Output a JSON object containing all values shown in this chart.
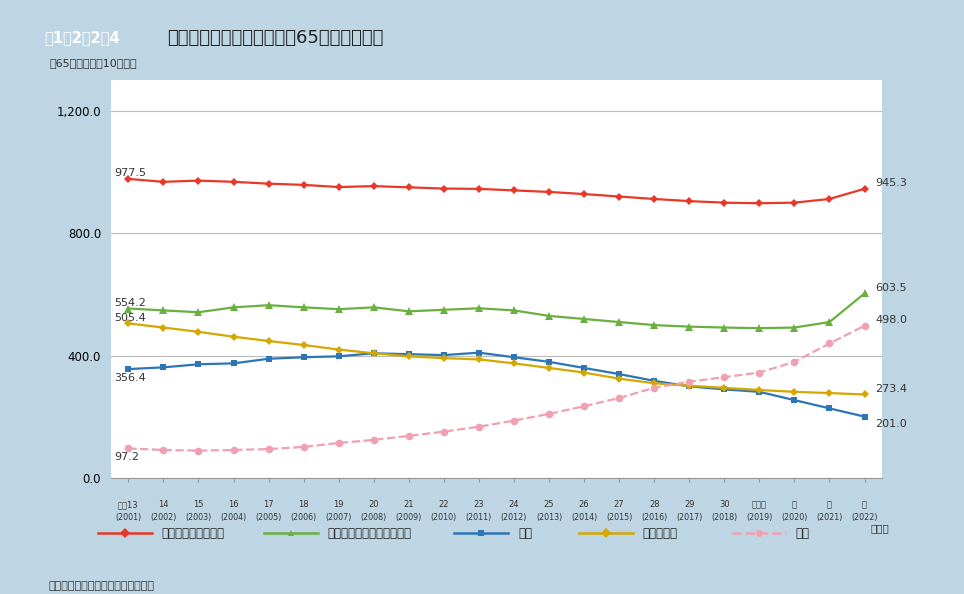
{
  "ylabel": "（65歳以上人口10万対）",
  "source": "資料：厘生労働省「人口動態統計」",
  "box_label": "図1－2－2－4",
  "main_title": "主な死因別死亡率の推移（65歳以上の者）",
  "xlabels_top": [
    "平成13",
    "14",
    "15",
    "16",
    "17",
    "18",
    "19",
    "20",
    "21",
    "22",
    "23",
    "24",
    "25",
    "26",
    "27",
    "28",
    "29",
    "30",
    "令和元",
    "２",
    "３",
    "４"
  ],
  "xlabels_bottom": [
    "(2001)",
    "(2002)",
    "(2003)",
    "(2004)",
    "(2005)",
    "(2006)",
    "(2007)",
    "(2008)",
    "(2009)",
    "(2010)",
    "(2011)",
    "(2012)",
    "(2013)",
    "(2014)",
    "(2015)",
    "(2016)",
    "(2017)",
    "(2018)",
    "(2019)",
    "(2020)",
    "(2021)",
    "(2022)"
  ],
  "cancer": [
    977.5,
    968.0,
    972.0,
    968.0,
    962.0,
    958.0,
    951.0,
    954.0,
    950.0,
    946.0,
    945.0,
    940.0,
    935.0,
    928.0,
    920.0,
    912.0,
    905.0,
    900.0,
    898.0,
    900.0,
    912.0,
    945.3
  ],
  "heart": [
    554.2,
    548.0,
    542.0,
    558.0,
    565.0,
    558.0,
    552.0,
    558.0,
    545.0,
    550.0,
    555.0,
    548.0,
    530.0,
    520.0,
    510.0,
    500.0,
    495.0,
    492.0,
    490.0,
    492.0,
    510.0,
    603.5
  ],
  "pneumonia": [
    356.4,
    362.0,
    372.0,
    375.0,
    390.0,
    395.0,
    398.0,
    408.0,
    405.0,
    402.0,
    410.0,
    395.0,
    380.0,
    360.0,
    340.0,
    318.0,
    300.0,
    290.0,
    282.0,
    255.0,
    228.0,
    201.0
  ],
  "cerebrovascular": [
    505.4,
    492.0,
    478.0,
    462.0,
    448.0,
    435.0,
    420.0,
    408.0,
    398.0,
    392.0,
    388.0,
    375.0,
    360.0,
    345.0,
    325.0,
    310.0,
    302.0,
    295.0,
    288.0,
    282.0,
    278.0,
    273.4
  ],
  "senility": [
    97.2,
    92.0,
    90.0,
    92.0,
    95.0,
    102.0,
    115.0,
    125.0,
    138.0,
    152.0,
    168.0,
    188.0,
    210.0,
    235.0,
    262.0,
    295.0,
    315.0,
    330.0,
    345.0,
    380.0,
    440.0,
    498.0
  ],
  "cancer_color": "#e83828",
  "heart_color": "#6ab040",
  "pneumonia_color": "#2e75b6",
  "cerebrovascular_color": "#d4a800",
  "senility_color": "#f0a0b0",
  "background_color": "#bed6e4",
  "plot_bg_color": "#ffffff",
  "header_box_color": "#5bbccc",
  "legend_items": [
    {
      "label": "悪性新生物（がん）",
      "color": "#e83828",
      "marker": "D",
      "ls": "-"
    },
    {
      "label": "心疾患（高血圧性を除く）",
      "color": "#6ab040",
      "marker": "^",
      "ls": "-"
    },
    {
      "label": "肺炎",
      "color": "#2e75b6",
      "marker": "s",
      "ls": "-"
    },
    {
      "label": "脳血管疾患",
      "color": "#d4a800",
      "marker": "D",
      "ls": "-"
    },
    {
      "label": "老衰",
      "color": "#f0a0b0",
      "marker": "o",
      "ls": "--"
    }
  ]
}
